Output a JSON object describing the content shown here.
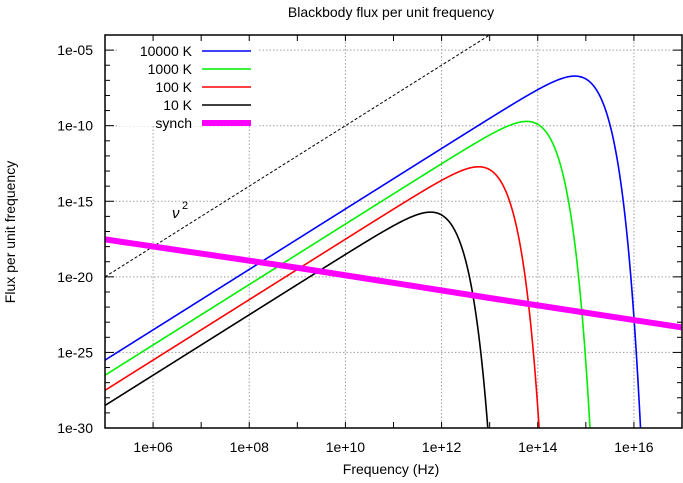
{
  "chart_data": {
    "type": "line",
    "title": "Blackbody flux per unit frequency",
    "xlabel": "Frequency (Hz)",
    "ylabel": "Flux per unit frequency",
    "xscale": "log",
    "yscale": "log",
    "xlim": [
      100000.0,
      1e+17
    ],
    "ylim": [
      1e-30,
      0.0001
    ],
    "grid": true,
    "legend_position": "top-left",
    "x_ticks": [
      {
        "value": 1000000.0,
        "label": "1e+06"
      },
      {
        "value": 100000000.0,
        "label": "1e+08"
      },
      {
        "value": 10000000000.0,
        "label": "1e+10"
      },
      {
        "value": 1000000000000.0,
        "label": "1e+12"
      },
      {
        "value": 100000000000000.0,
        "label": "1e+14"
      },
      {
        "value": 1e+16,
        "label": "1e+16"
      }
    ],
    "y_ticks": [
      {
        "value": 1e-05,
        "label": "1e-05"
      },
      {
        "value": 1e-10,
        "label": "1e-10"
      },
      {
        "value": 1e-15,
        "label": "1e-15"
      },
      {
        "value": 1e-20,
        "label": "1e-20"
      },
      {
        "value": 1e-25,
        "label": "1e-25"
      },
      {
        "value": 1e-30,
        "label": "1e-30"
      }
    ],
    "series": [
      {
        "name": "10000 K",
        "type": "blackbody",
        "temperature_K": 10000,
        "color": "#0000ff",
        "width": 1.6,
        "points": [
          [
            100000.0,
            3.1e-26
          ],
          [
            100000000.0,
            3.1e-20
          ],
          [
            1000000000000.0,
            3e-12
          ],
          [
            100000000000000.0,
            1.6e-08
          ],
          [
            590000000000000.0,
            2e-07
          ],
          [
            1e+16,
            1e-15
          ]
        ]
      },
      {
        "name": "1000 K",
        "type": "blackbody",
        "temperature_K": 1000,
        "color": "#00ee00",
        "width": 1.6,
        "points": [
          [
            100000.0,
            3.1e-27
          ],
          [
            100000000.0,
            3.1e-21
          ],
          [
            1000000000000.0,
            2.8e-13
          ],
          [
            59000000000000.0,
            2e-10
          ],
          [
            100000000000000.0,
            1.3e-10
          ],
          [
            1000000000000000.0,
            1e-30
          ]
        ]
      },
      {
        "name": "100 K",
        "type": "blackbody",
        "temperature_K": 100,
        "color": "#ff0000",
        "width": 1.6,
        "points": [
          [
            100000.0,
            3.1e-28
          ],
          [
            100000000.0,
            3.1e-22
          ],
          [
            1000000000000.0,
            1.6e-14
          ],
          [
            5900000000000.0,
            2e-13
          ],
          [
            10000000000000.0,
            1.3e-13
          ],
          [
            100000000000000.0,
            1e-30
          ]
        ]
      },
      {
        "name": "10 K",
        "type": "blackbody",
        "temperature_K": 10,
        "color": "#000000",
        "width": 1.6,
        "points": [
          [
            100000.0,
            3.1e-29
          ],
          [
            100000000.0,
            3.1e-23
          ],
          [
            100000000000.0,
            2.7e-17
          ],
          [
            590000000000.0,
            2e-16
          ],
          [
            1000000000000.0,
            1.3e-16
          ],
          [
            10000000000000.0,
            1e-30
          ]
        ]
      },
      {
        "name": "synch",
        "type": "power-law",
        "color": "#ff00ff",
        "width": 6,
        "points": [
          [
            100000.0,
            3e-18
          ],
          [
            1000000000.0,
            4e-20
          ],
          [
            10000000000000.0,
            4e-22
          ],
          [
            1e+17,
            4.5e-24
          ]
        ]
      }
    ],
    "annotations": [
      {
        "type": "dashed-line",
        "label": "ν²",
        "color": "#000000",
        "points": [
          [
            100000.0,
            1e-20
          ],
          [
            10000000000000.0,
            0.0001
          ]
        ]
      }
    ]
  },
  "labels": {
    "nu_squared": "ν",
    "nu_squared_exp": "2"
  }
}
